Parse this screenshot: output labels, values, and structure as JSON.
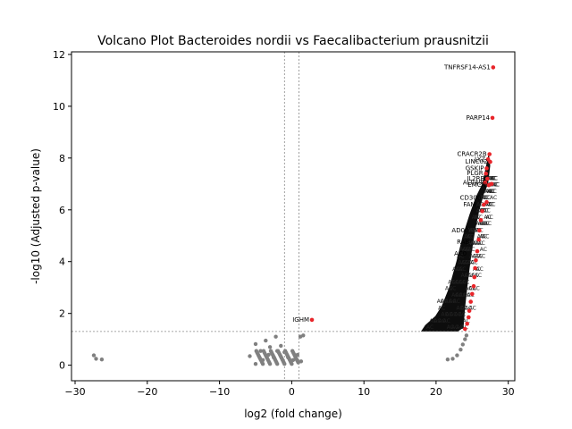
{
  "chart_data": {
    "type": "scatter",
    "title": "Volcano Plot Bacteroides nordii vs Faecalibacterium prausnitzii",
    "xlabel": "log2 (fold change)",
    "ylabel": "-log10 (Adjusted p-value)",
    "xlim": [
      -30.5,
      30.9
    ],
    "ylim": [
      -0.6,
      12.1
    ],
    "xticks": [
      "−30",
      "−20",
      "−10",
      "0",
      "10",
      "20",
      "30"
    ],
    "xtick_values": [
      -30,
      -20,
      -10,
      0,
      10,
      20,
      30
    ],
    "yticks": [
      "0",
      "2",
      "4",
      "6",
      "8",
      "10",
      "12"
    ],
    "ytick_values": [
      0,
      2,
      4,
      6,
      8,
      10,
      12
    ],
    "grid": false,
    "thresholds": {
      "log2fc": [
        -1,
        1
      ],
      "neg_log10_padj": 1.3
    },
    "colors": {
      "significant": "#e8252a",
      "not_significant": "#808080",
      "labels": "#000000",
      "threshold_line": "#888888"
    },
    "series": [
      {
        "points_significant": [
          [
            27.9,
            11.5
          ],
          [
            27.8,
            9.55
          ],
          [
            2.8,
            1.75
          ],
          [
            27.4,
            8.15
          ],
          [
            27.2,
            7.95
          ],
          [
            27.5,
            7.85
          ],
          [
            27.0,
            7.6
          ],
          [
            26.9,
            7.4
          ],
          [
            27.1,
            7.2
          ],
          [
            26.8,
            7.05
          ],
          [
            27.7,
            7.0
          ],
          [
            27.3,
            6.95
          ],
          [
            27.0,
            6.3
          ],
          [
            26.6,
            6.2
          ],
          [
            26.4,
            5.95
          ],
          [
            26.2,
            5.6
          ],
          [
            26.0,
            5.2
          ],
          [
            25.9,
            4.85
          ],
          [
            25.7,
            4.4
          ],
          [
            25.5,
            4.05
          ],
          [
            25.4,
            3.75
          ],
          [
            25.3,
            3.4
          ],
          [
            25.2,
            3.05
          ],
          [
            25.0,
            2.75
          ],
          [
            24.8,
            2.45
          ],
          [
            24.6,
            2.1
          ],
          [
            24.5,
            1.85
          ],
          [
            24.3,
            1.6
          ],
          [
            24.0,
            1.4
          ]
        ],
        "points_not_significant": [
          [
            -27.4,
            0.38
          ],
          [
            -27.1,
            0.25
          ],
          [
            -26.3,
            0.22
          ],
          [
            -5.8,
            0.35
          ],
          [
            -5.0,
            0.82
          ],
          [
            -4.3,
            0.55
          ],
          [
            -3.6,
            0.95
          ],
          [
            -3.0,
            0.7
          ],
          [
            -2.2,
            1.1
          ],
          [
            -1.5,
            0.75
          ],
          [
            -1.0,
            0.5
          ],
          [
            -0.5,
            0.3
          ],
          [
            0.2,
            0.2
          ],
          [
            0.8,
            0.4
          ],
          [
            1.2,
            1.1
          ],
          [
            1.6,
            1.15
          ],
          [
            1.3,
            0.15
          ],
          [
            -4.0,
            0.2
          ],
          [
            -3.2,
            0.4
          ],
          [
            -2.5,
            0.3
          ],
          [
            -2.0,
            0.55
          ],
          [
            21.6,
            0.22
          ],
          [
            22.3,
            0.25
          ],
          [
            22.9,
            0.38
          ],
          [
            23.4,
            0.6
          ],
          [
            23.7,
            0.8
          ],
          [
            24.0,
            1.0
          ],
          [
            24.2,
            1.15
          ]
        ]
      }
    ],
    "annotations": [
      {
        "text": "TNFRSF14-AS1",
        "x": 27.9,
        "y": 11.5
      },
      {
        "text": "PARP14",
        "x": 27.8,
        "y": 9.55
      },
      {
        "text": "CRACR2B",
        "x": 27.4,
        "y": 8.15
      },
      {
        "text": "LYZ",
        "x": 27.2,
        "y": 7.95
      },
      {
        "text": "LINC02",
        "x": 27.5,
        "y": 7.85
      },
      {
        "text": "GSKIP",
        "x": 27.0,
        "y": 7.6
      },
      {
        "text": "PLGR",
        "x": 26.9,
        "y": 7.4
      },
      {
        "text": "IL2RB",
        "x": 27.1,
        "y": 7.2
      },
      {
        "text": "AL049",
        "x": 26.8,
        "y": 7.05
      },
      {
        "text": "EMCN",
        "x": 27.3,
        "y": 6.95
      },
      {
        "text": "CD300",
        "x": 26.6,
        "y": 6.45
      },
      {
        "text": "FAM",
        "x": 25.9,
        "y": 6.2
      },
      {
        "text": "AD00",
        "x": 24.9,
        "y": 5.2
      },
      {
        "text": "RAB",
        "x": 25.0,
        "y": 4.75
      },
      {
        "text": "AC0",
        "x": 24.6,
        "y": 4.3
      },
      {
        "text": "IGHM",
        "x": 2.8,
        "y": 1.75
      }
    ]
  }
}
